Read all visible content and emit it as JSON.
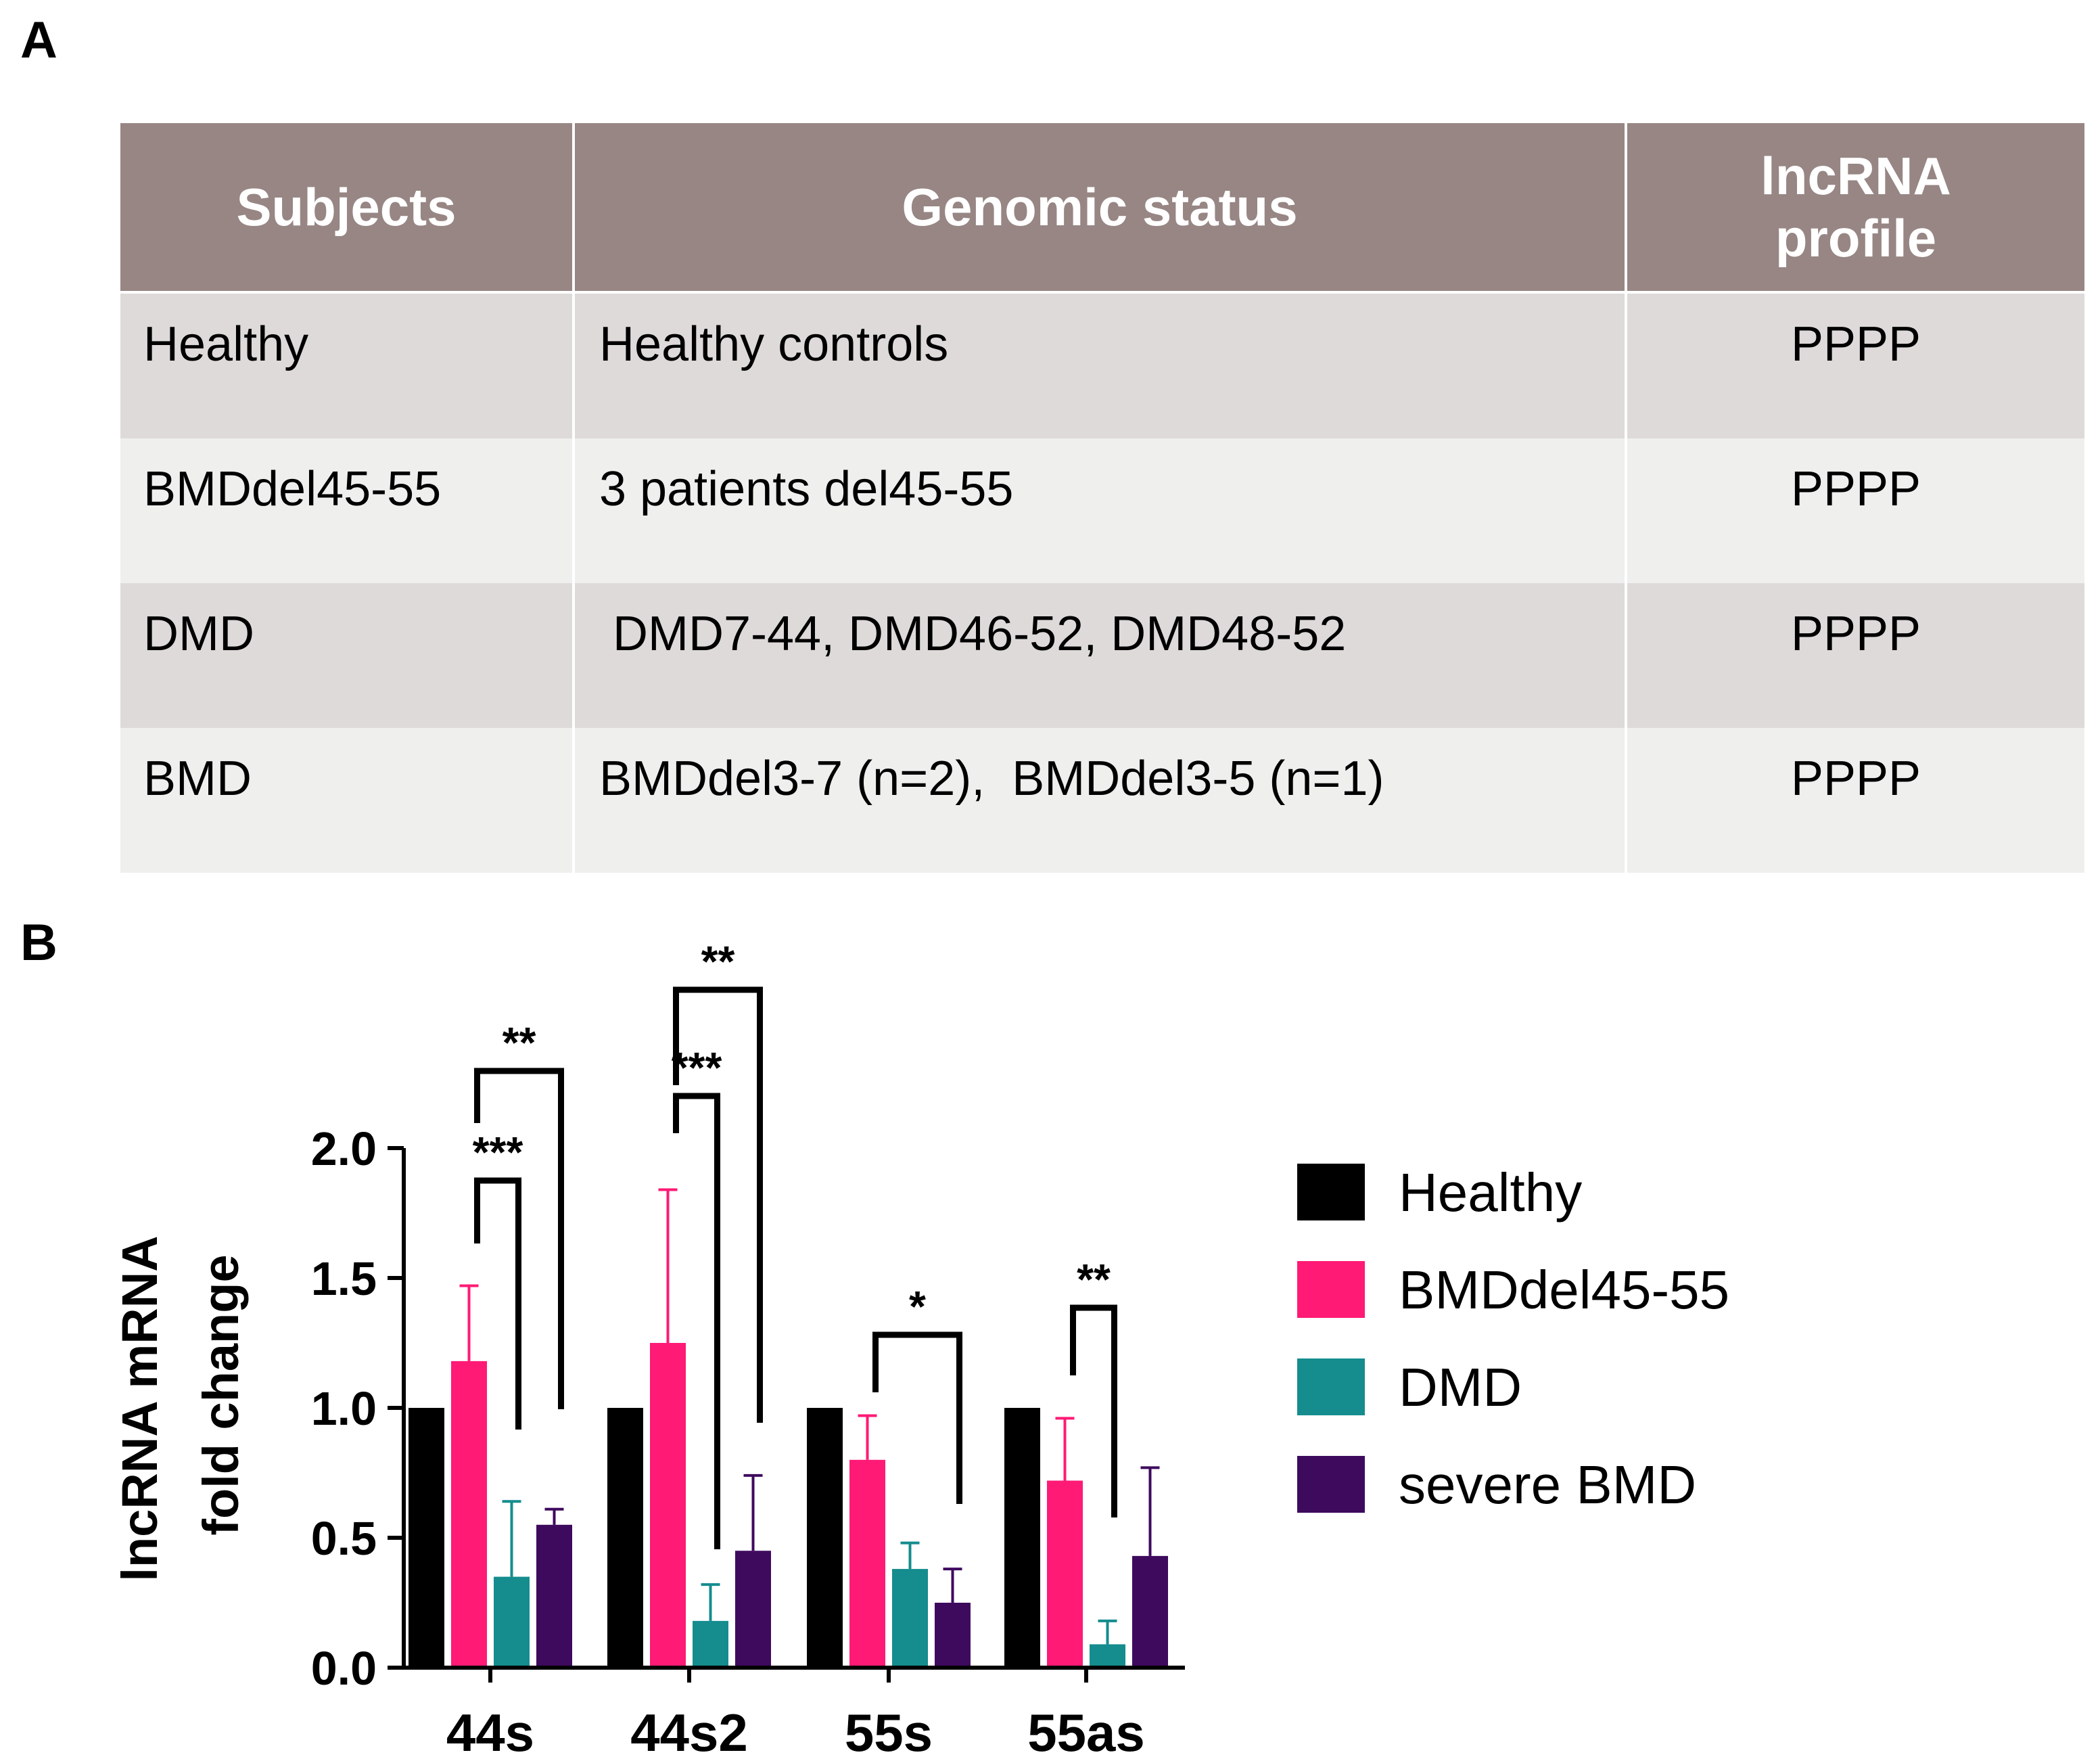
{
  "panels": {
    "a": "A",
    "b": "B"
  },
  "colors": {
    "header_bg": "#978684",
    "row_dark": "#dedad9",
    "row_light": "#efefee",
    "healthy": "#000000",
    "bmddel": "#ff1a75",
    "dmd": "#158c8e",
    "severe_bmd": "#3e0a5e"
  },
  "table": {
    "headers": [
      "Subjects",
      "Genomic status",
      "lncRNA\nprofile"
    ],
    "rows": [
      {
        "subject": "Healthy",
        "status": "Healthy controls",
        "profile": "PPPP"
      },
      {
        "subject": "BMDdel45-55",
        "status": "3 patients del45-55",
        "profile": "PPPP"
      },
      {
        "subject": "DMD",
        "status": " DMD7-44, DMD46-52, DMD48-52",
        "profile": "PPPP"
      },
      {
        "subject": "BMD",
        "status": "BMDdel3-7 (n=2),  BMDdel3-5 (n=1)",
        "profile": "PPPP"
      }
    ]
  },
  "chart_data": {
    "type": "bar",
    "title": "",
    "xlabel": "",
    "ylabel": [
      "lncRNA mRNA",
      "fold change"
    ],
    "ylim": [
      0,
      2.0
    ],
    "yticks": [
      "0.0",
      "0.5",
      "1.0",
      "1.5",
      "2.0"
    ],
    "categories": [
      "44s",
      "44s2",
      "55s",
      "55as"
    ],
    "series": [
      {
        "name": "Healthy",
        "color": "#000000",
        "values": [
          1.0,
          1.0,
          1.0,
          1.0
        ],
        "errors": [
          0,
          0,
          0,
          0
        ]
      },
      {
        "name": "BMDdel45-55",
        "color": "#ff1a75",
        "values": [
          1.18,
          1.25,
          0.8,
          0.72
        ],
        "errors": [
          0.29,
          0.59,
          0.17,
          0.24
        ]
      },
      {
        "name": "DMD",
        "color": "#158c8e",
        "values": [
          0.35,
          0.18,
          0.38,
          0.09
        ],
        "errors": [
          0.29,
          0.14,
          0.1,
          0.09
        ]
      },
      {
        "name": "severe BMD",
        "color": "#3e0a5e",
        "values": [
          0.55,
          0.45,
          0.25,
          0.43
        ],
        "errors": [
          0.06,
          0.29,
          0.13,
          0.34
        ]
      }
    ],
    "legend": {
      "position": "right",
      "entries": [
        "Healthy",
        "BMDdel45-55",
        "DMD",
        "severe BMD"
      ]
    },
    "significance": [
      {
        "category": "44s",
        "from": "BMDdel45-55",
        "to": "DMD",
        "label": "***"
      },
      {
        "category": "44s",
        "from": "BMDdel45-55",
        "to": "severe BMD",
        "label": "**"
      },
      {
        "category": "44s2",
        "from": "BMDdel45-55",
        "to": "DMD",
        "label": "***"
      },
      {
        "category": "44s2",
        "from": "BMDdel45-55",
        "to": "severe BMD",
        "label": "**"
      },
      {
        "category": "55s",
        "from": "BMDdel45-55",
        "to": "severe BMD",
        "label": "*"
      },
      {
        "category": "55as",
        "from": "BMDdel45-55",
        "to": "DMD",
        "label": "**"
      }
    ]
  }
}
